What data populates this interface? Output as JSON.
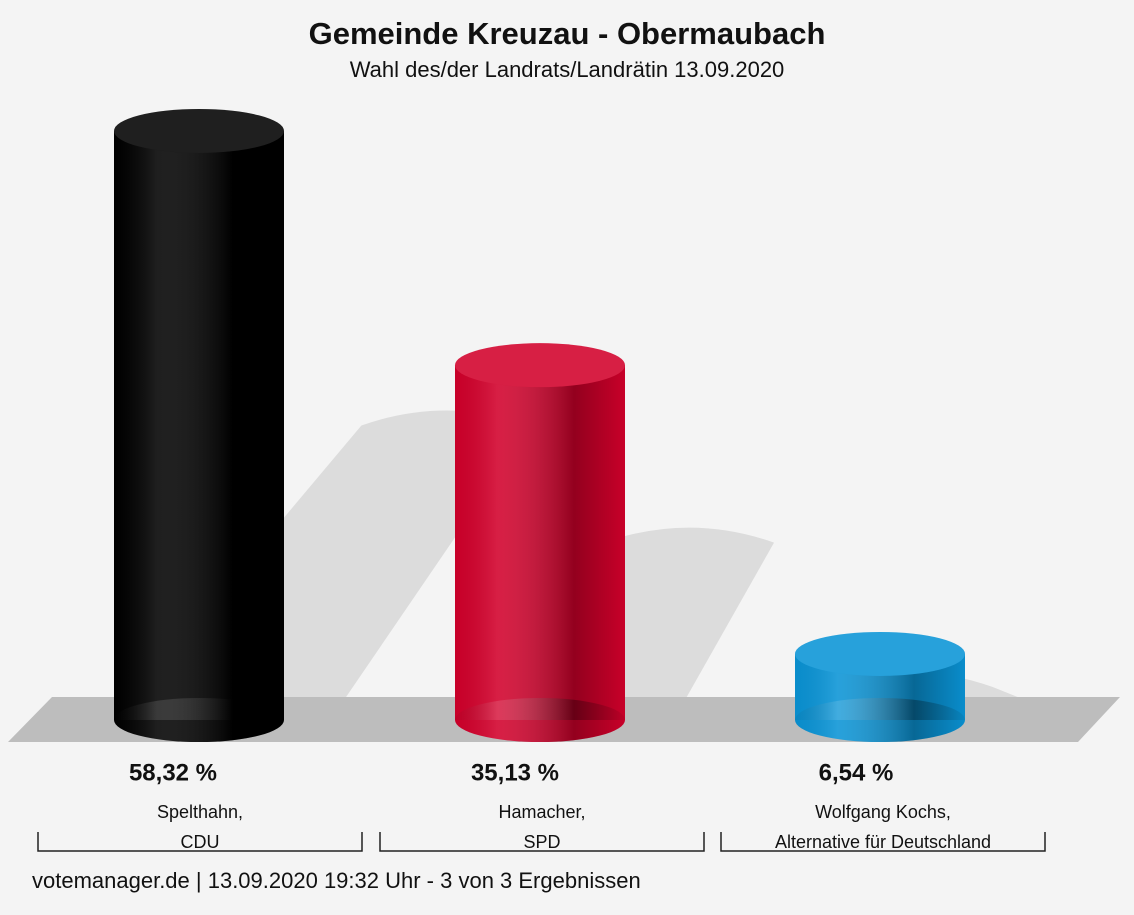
{
  "chart_data": {
    "type": "bar",
    "title": "Gemeinde Kreuzau - Obermaubach",
    "subtitle": "Wahl des/der Landrats/Landrätin 13.09.2020",
    "categories": [
      "Spelthahn,\nCDU",
      "Hamacher,\nSPD",
      "Wolfgang Kochs,\nAlternative für Deutschland"
    ],
    "values": [
      58.32,
      35.13,
      6.54
    ],
    "value_labels": [
      "58,32 %",
      "35,13 %",
      "6,54 %"
    ],
    "colors": [
      "#000000",
      "#d2002b",
      "#0a94d6"
    ],
    "footer": "votemanager.de | 13.09.2020 19:32 Uhr - 3 von 3 Ergebnissen"
  }
}
